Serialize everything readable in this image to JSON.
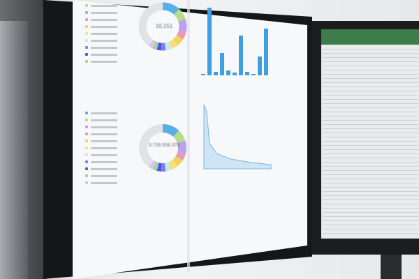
{
  "dashboard": {
    "donut_top_center": "16,151",
    "donut_bottom_center": "3,739,958,376"
  },
  "colors": {
    "donut_segments": [
      "#5aaee8",
      "#b7dc8a",
      "#b9a2ea",
      "#e79bb5",
      "#f2d35c",
      "#f5e07a",
      "#c8e8f2",
      "#7b86e0",
      "#5a4fe8",
      "#9ad89a",
      "#d9c2ee",
      "#dfe3e8"
    ],
    "bars": "#3f9fe0",
    "spreadsheet_header": "#3d7d4a"
  }
}
